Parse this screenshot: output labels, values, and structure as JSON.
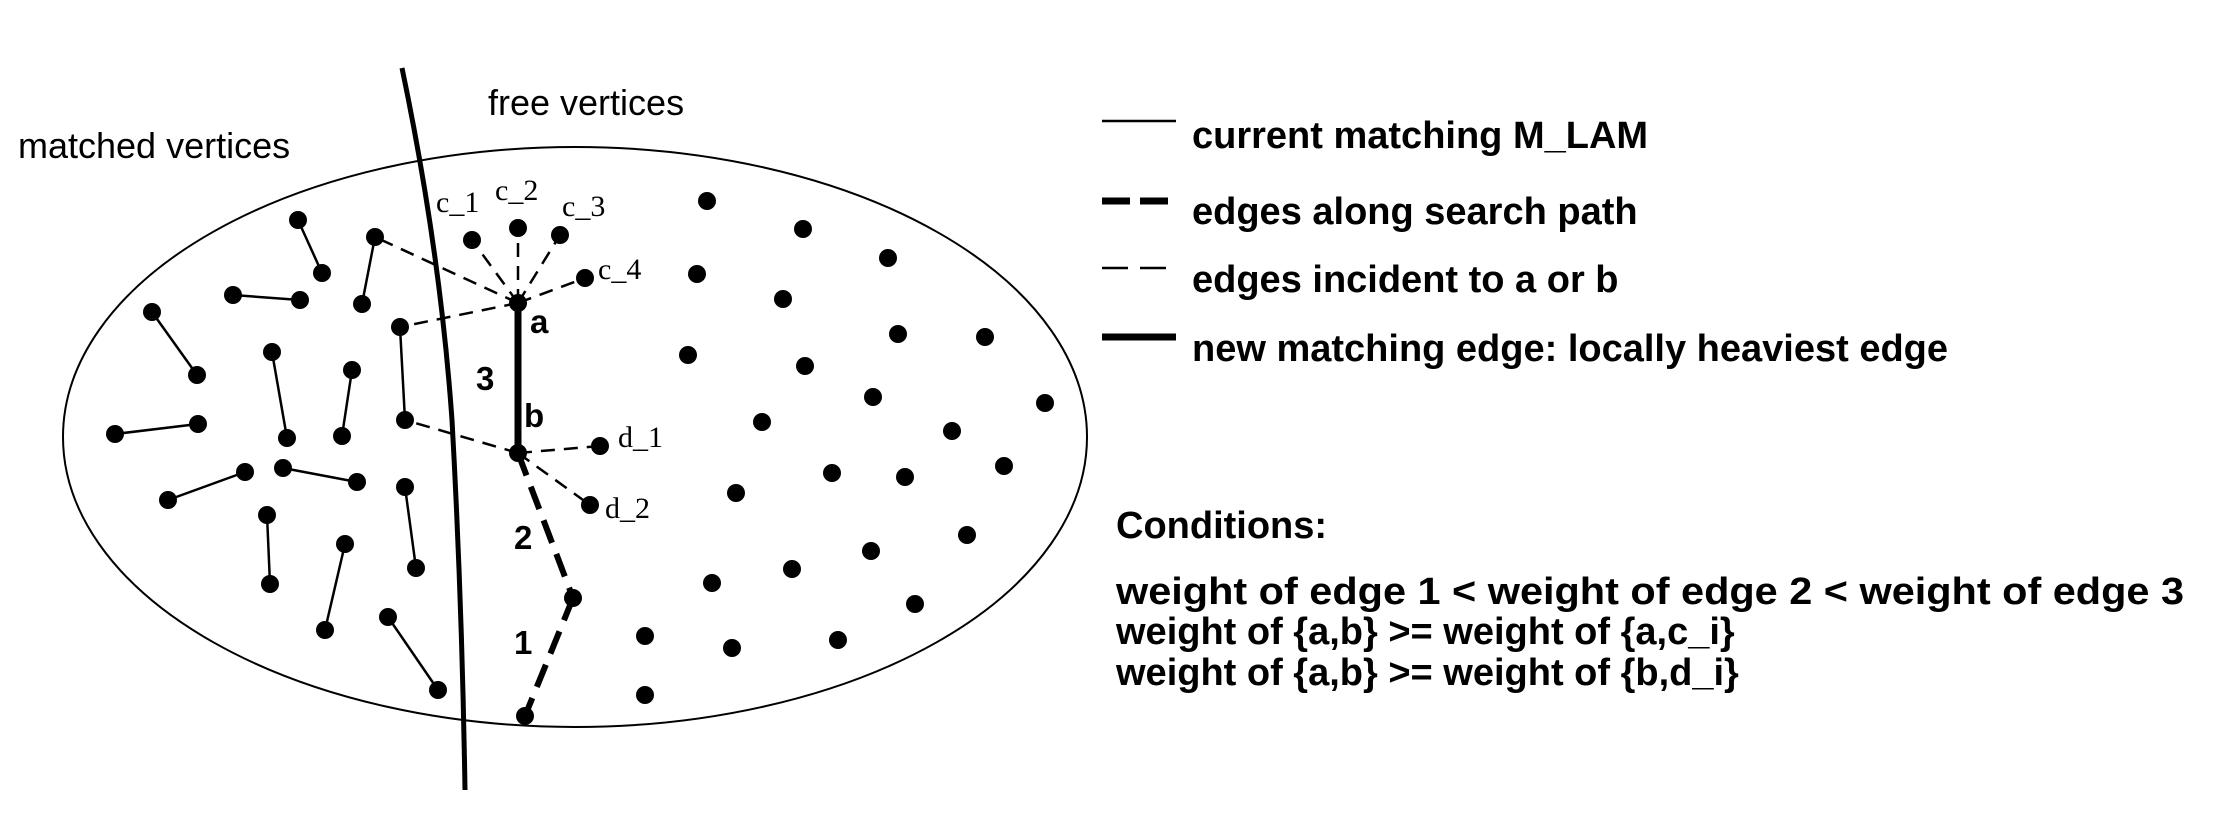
{
  "labels": {
    "matched_vertices": "matched vertices",
    "free_vertices": "free vertices"
  },
  "vertex_labels": {
    "c1": "c_1",
    "c2": "c_2",
    "c3": "c_3",
    "c4": "c_4",
    "a": "a",
    "b": "b",
    "d1": "d_1",
    "d2": "d_2"
  },
  "edge_numbers": {
    "edge1": "1",
    "edge2": "2",
    "edge3": "3"
  },
  "legend": {
    "current_matching": "current matching M_LAM",
    "search_path": "edges along search path",
    "incident_edges": "edges incident to a or b",
    "new_matching": "new matching edge: locally heaviest edge"
  },
  "conditions": {
    "title": "Conditions:",
    "line1": "weight of edge 1 <  weight of edge 2 < weight of edge 3",
    "line2": "weight of {a,b} >= weight of {a,c_i}",
    "line3": "weight of {a,b} >= weight of {b,d_i}"
  }
}
